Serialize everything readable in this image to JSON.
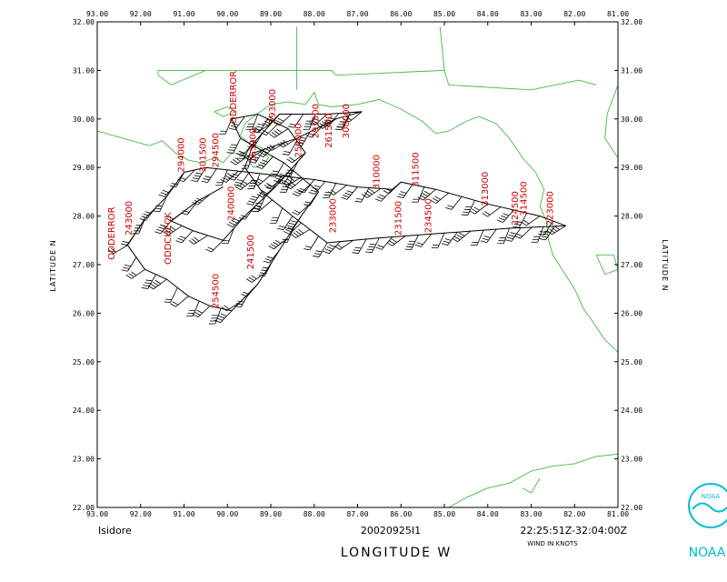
{
  "map": {
    "lon_labels": [
      "93.00",
      "92.00",
      "91.00",
      "90.00",
      "89.00",
      "88.00",
      "87.00",
      "86.00",
      "85.00",
      "84.00",
      "83.00",
      "82.00",
      "81.00"
    ],
    "lat_labels": [
      "32.00",
      "31.00",
      "30.00",
      "29.00",
      "28.00",
      "27.00",
      "26.00",
      "25.00",
      "24.00",
      "23.00",
      "22.00"
    ],
    "lon_range": [
      -93,
      -81
    ],
    "lat_range": [
      22,
      32
    ],
    "ylabel": "LATITUDE   N",
    "xlabel": "LONGITUDE   W",
    "coast_color": "#44bb44",
    "obs_color": "#cc0000"
  },
  "footer": {
    "storm": "Isidore",
    "flight": "20020925I1",
    "time_range": "22:25:51Z-32:04:00Z",
    "wind_units": "WIND IN KNOTS"
  },
  "logo": {
    "text": "NOAA",
    "seal_text": "NOAA",
    "color": "#00bcd4"
  },
  "track": [
    [
      -89.4,
      29.3
    ],
    [
      -88.4,
      29.6
    ],
    [
      -87.5,
      30.0
    ],
    [
      -86.9,
      30.15
    ],
    [
      -87.7,
      30.1
    ],
    [
      -88.8,
      30.1
    ],
    [
      -89.4,
      29.5
    ],
    [
      -89.6,
      29.0
    ],
    [
      -89.2,
      28.5
    ],
    [
      -88.5,
      28.0
    ],
    [
      -87.7,
      27.45
    ],
    [
      -86.5,
      27.55
    ],
    [
      -85.0,
      27.65
    ],
    [
      -83.5,
      27.75
    ],
    [
      -82.2,
      27.8
    ],
    [
      -82.8,
      28.0
    ],
    [
      -84.0,
      28.25
    ],
    [
      -85.2,
      28.55
    ],
    [
      -86.0,
      28.7
    ],
    [
      -86.2,
      28.55
    ],
    [
      -87.0,
      28.6
    ],
    [
      -88.0,
      28.75
    ],
    [
      -89.5,
      28.9
    ],
    [
      -90.5,
      29.0
    ],
    [
      -91.0,
      28.9
    ],
    [
      -91.4,
      28.4
    ],
    [
      -91.9,
      27.95
    ],
    [
      -92.3,
      27.4
    ],
    [
      -91.9,
      26.9
    ],
    [
      -91.4,
      26.7
    ],
    [
      -90.9,
      26.35
    ],
    [
      -90.4,
      26.15
    ],
    [
      -89.9,
      26.05
    ],
    [
      -89.3,
      26.6
    ],
    [
      -88.8,
      27.3
    ],
    [
      -88.3,
      28.0
    ],
    [
      -87.9,
      28.5
    ],
    [
      -88.7,
      29.1
    ],
    [
      -89.7,
      29.6
    ],
    [
      -89.9,
      30.0
    ],
    [
      -89.3,
      30.1
    ],
    [
      -88.6,
      29.8
    ],
    [
      -88.2,
      29.3
    ],
    [
      -88.9,
      28.6
    ],
    [
      -89.6,
      28.0
    ],
    [
      -90.1,
      27.5
    ],
    [
      -90.8,
      27.7
    ],
    [
      -91.3,
      27.9
    ],
    [
      -90.7,
      28.3
    ],
    [
      -90.1,
      28.6
    ]
  ],
  "barb_every": 1,
  "observations": [
    {
      "label": "294500",
      "lon": -90.2,
      "lat": 29.0
    },
    {
      "label": "301500",
      "lon": -90.5,
      "lat": 28.9
    },
    {
      "label": "294000",
      "lon": -91.0,
      "lat": 28.9
    },
    {
      "label": "ODDERROR",
      "lon": -89.8,
      "lat": 29.9
    },
    {
      "label": "163000",
      "lon": -89.35,
      "lat": 29.1
    },
    {
      "label": "291500",
      "lon": -87.9,
      "lat": 29.6
    },
    {
      "label": "261500",
      "lon": -87.6,
      "lat": 29.4
    },
    {
      "label": "300000",
      "lon": -87.2,
      "lat": 29.6
    },
    {
      "label": "254000",
      "lon": -88.3,
      "lat": 29.2
    },
    {
      "label": "293000",
      "lon": -88.9,
      "lat": 29.9
    },
    {
      "label": "310000",
      "lon": -86.5,
      "lat": 28.55
    },
    {
      "label": "311500",
      "lon": -85.6,
      "lat": 28.6
    },
    {
      "label": "313000",
      "lon": -84.0,
      "lat": 28.2
    },
    {
      "label": "314500",
      "lon": -83.1,
      "lat": 28.0
    },
    {
      "label": "223000",
      "lon": -82.5,
      "lat": 27.8
    },
    {
      "label": "224500",
      "lon": -83.3,
      "lat": 27.8
    },
    {
      "label": "231500",
      "lon": -86.0,
      "lat": 27.6
    },
    {
      "label": "233000",
      "lon": -87.5,
      "lat": 27.65
    },
    {
      "label": "234500",
      "lon": -85.3,
      "lat": 27.65
    },
    {
      "label": "240000",
      "lon": -89.85,
      "lat": 27.9
    },
    {
      "label": "241500",
      "lon": -89.4,
      "lat": 26.9
    },
    {
      "label": "243000",
      "lon": -92.2,
      "lat": 27.6
    },
    {
      "label": "254500",
      "lon": -90.2,
      "lat": 26.1
    },
    {
      "label": "ODDERROR",
      "lon": -92.6,
      "lat": 27.1
    },
    {
      "label": "ODDCHECK",
      "lon": -91.3,
      "lat": 27.0
    }
  ]
}
